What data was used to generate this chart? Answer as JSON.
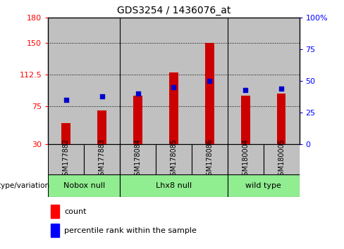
{
  "title": "GDS3254 / 1436076_at",
  "samples": [
    "GSM177882",
    "GSM177883",
    "GSM178084",
    "GSM178085",
    "GSM178086",
    "GSM180004",
    "GSM180005"
  ],
  "counts": [
    55,
    70,
    88,
    115,
    150,
    88,
    90
  ],
  "percentile_ranks": [
    35,
    38,
    40,
    45,
    50,
    43,
    44
  ],
  "bar_color": "#CC0000",
  "dot_color": "#0000CC",
  "ylim_left": [
    30,
    180
  ],
  "yticks_left": [
    30,
    75,
    112.5,
    150,
    180
  ],
  "ylim_right": [
    0,
    100
  ],
  "yticks_right": [
    0,
    25,
    50,
    75,
    100
  ],
  "bg_color": "#C0C0C0",
  "group_bg": "#90EE90",
  "groups": [
    {
      "label": "Nobox null",
      "start": 0,
      "end": 1
    },
    {
      "label": "Lhx8 null",
      "start": 2,
      "end": 4
    },
    {
      "label": "wild type",
      "start": 5,
      "end": 6
    }
  ]
}
